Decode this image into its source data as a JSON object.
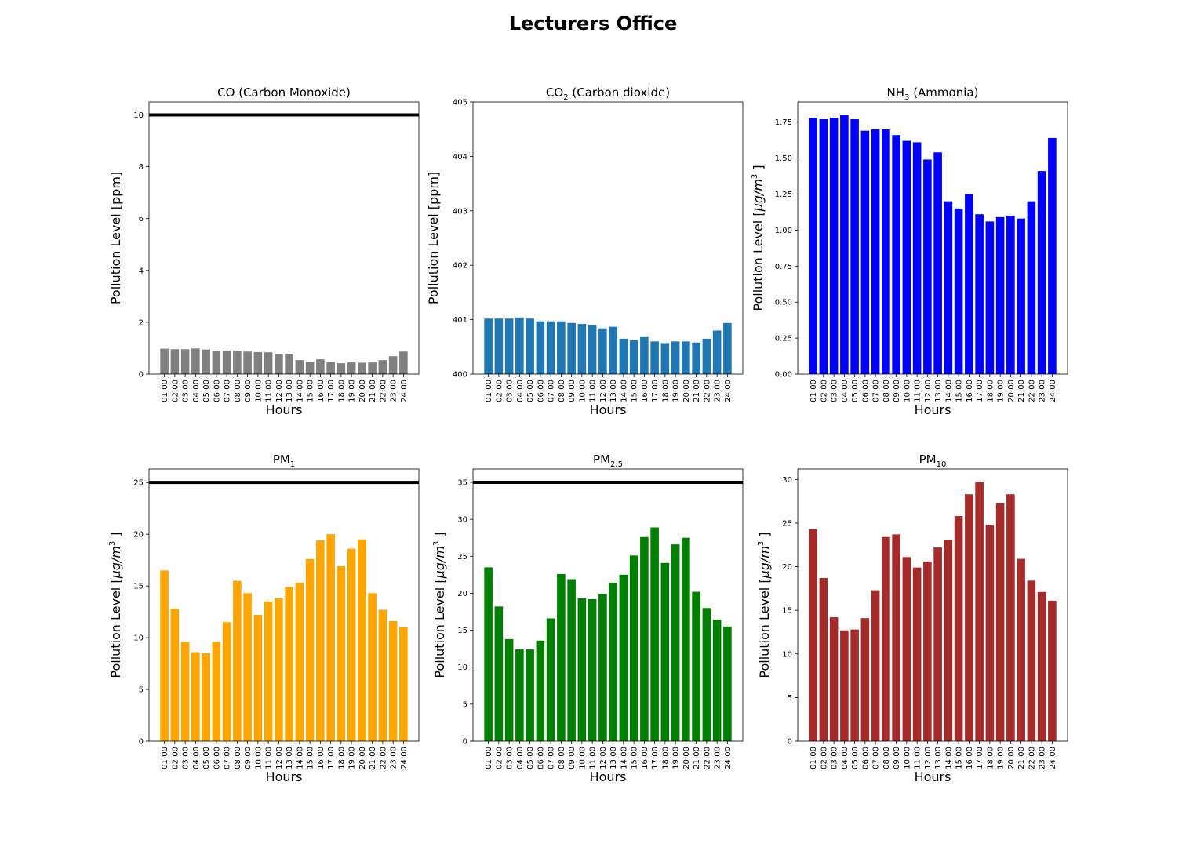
{
  "figure": {
    "title": "Lecturers Office"
  },
  "chart_data": [
    {
      "type": "bar",
      "title": "CO (Carbon Monoxide)",
      "title_main": "CO (Carbon Monoxide)",
      "title_sub": "",
      "title_rest": "",
      "xlabel": "Hours",
      "ylabel": "Pollution Level [ppm]",
      "ylabel_unit": "",
      "color": "#808080",
      "ylim": [
        0,
        10.5
      ],
      "yticks": [
        0,
        2,
        4,
        6,
        8,
        10
      ],
      "ytick_labels": [
        "0",
        "2",
        "4",
        "6",
        "8",
        "10"
      ],
      "threshold": 10,
      "categories": [
        "01:00",
        "02:00",
        "03:00",
        "04:00",
        "05:00",
        "06:00",
        "07:00",
        "08:00",
        "09:00",
        "10:00",
        "11:00",
        "12:00",
        "13:00",
        "14:00",
        "15:00",
        "16:00",
        "17:00",
        "18:00",
        "19:00",
        "20:00",
        "21:00",
        "22:00",
        "23:00",
        "24:00"
      ],
      "values": [
        0.98,
        0.96,
        0.96,
        0.99,
        0.95,
        0.91,
        0.91,
        0.91,
        0.87,
        0.85,
        0.84,
        0.76,
        0.78,
        0.54,
        0.48,
        0.57,
        0.48,
        0.42,
        0.45,
        0.44,
        0.45,
        0.54,
        0.69,
        0.87
      ]
    },
    {
      "type": "bar",
      "title": "CO2 (Carbon dioxide)",
      "title_main": "CO",
      "title_sub": "2",
      "title_rest": " (Carbon dioxide)",
      "xlabel": "Hours",
      "ylabel": "Pollution Level [ppm]",
      "ylabel_unit": "",
      "color": "#1f77b4",
      "ylim": [
        400,
        405
      ],
      "yticks": [
        400,
        401,
        402,
        403,
        404,
        405
      ],
      "ytick_labels": [
        "400",
        "401",
        "402",
        "403",
        "404",
        "405"
      ],
      "threshold": null,
      "categories": [
        "01:00",
        "02:00",
        "03:00",
        "04:00",
        "05:00",
        "06:00",
        "07:00",
        "08:00",
        "09:00",
        "10:00",
        "11:00",
        "12:00",
        "13:00",
        "14:00",
        "15:00",
        "16:00",
        "17:00",
        "18:00",
        "19:00",
        "20:00",
        "21:00",
        "22:00",
        "23:00",
        "24:00"
      ],
      "values": [
        401.02,
        401.02,
        401.02,
        401.04,
        401.02,
        400.97,
        400.97,
        400.97,
        400.94,
        400.92,
        400.9,
        400.84,
        400.87,
        400.65,
        400.62,
        400.68,
        400.6,
        400.57,
        400.6,
        400.6,
        400.58,
        400.65,
        400.8,
        400.94
      ]
    },
    {
      "type": "bar",
      "title": "NH3 (Ammonia)",
      "title_main": "NH",
      "title_sub": "3",
      "title_rest": " (Ammonia)",
      "xlabel": "Hours",
      "ylabel": "Pollution Level [",
      "ylabel_unit": "µg/m3 ]",
      "color": "#0000ff",
      "ylim": [
        0,
        1.89
      ],
      "yticks": [
        0,
        0.25,
        0.5,
        0.75,
        1.0,
        1.25,
        1.5,
        1.75
      ],
      "ytick_labels": [
        "0.00",
        "0.25",
        "0.50",
        "0.75",
        "1.00",
        "1.25",
        "1.50",
        "1.75"
      ],
      "threshold": null,
      "categories": [
        "01:00",
        "02:00",
        "03:00",
        "04:00",
        "05:00",
        "06:00",
        "07:00",
        "08:00",
        "09:00",
        "10:00",
        "11:00",
        "12:00",
        "13:00",
        "14:00",
        "15:00",
        "16:00",
        "17:00",
        "18:00",
        "19:00",
        "20:00",
        "21:00",
        "22:00",
        "23:00",
        "24:00"
      ],
      "values": [
        1.78,
        1.77,
        1.78,
        1.8,
        1.77,
        1.69,
        1.7,
        1.7,
        1.66,
        1.62,
        1.61,
        1.49,
        1.54,
        1.2,
        1.15,
        1.25,
        1.11,
        1.06,
        1.09,
        1.1,
        1.08,
        1.2,
        1.41,
        1.64
      ]
    },
    {
      "type": "bar",
      "title": "PM1",
      "title_main": "PM",
      "title_sub": "1",
      "title_rest": "",
      "xlabel": "Hours",
      "ylabel": "Pollution Level [",
      "ylabel_unit": "µg/m3 ]",
      "color": "#ffa500",
      "ylim": [
        0,
        26.3
      ],
      "yticks": [
        0,
        5,
        10,
        15,
        20,
        25
      ],
      "ytick_labels": [
        "0",
        "5",
        "10",
        "15",
        "20",
        "25"
      ],
      "threshold": 25,
      "categories": [
        "01:00",
        "02:00",
        "03:00",
        "04:00",
        "05:00",
        "06:00",
        "07:00",
        "08:00",
        "09:00",
        "10:00",
        "11:00",
        "12:00",
        "13:00",
        "14:00",
        "15:00",
        "16:00",
        "17:00",
        "18:00",
        "19:00",
        "20:00",
        "21:00",
        "22:00",
        "23:00",
        "24:00"
      ],
      "values": [
        16.5,
        12.8,
        9.6,
        8.6,
        8.5,
        9.6,
        11.5,
        15.5,
        14.3,
        12.2,
        13.5,
        13.8,
        14.9,
        15.3,
        17.6,
        19.4,
        20.0,
        16.9,
        18.6,
        19.5,
        14.3,
        12.7,
        11.6,
        11.0
      ]
    },
    {
      "type": "bar",
      "title": "PM2.5",
      "title_main": "PM",
      "title_sub": "2.5",
      "title_rest": "",
      "xlabel": "Hours",
      "ylabel": "Pollution Level [",
      "ylabel_unit": "µg/m3 ]",
      "color": "#008000",
      "ylim": [
        0,
        36.8
      ],
      "yticks": [
        0,
        5,
        10,
        15,
        20,
        25,
        30,
        35
      ],
      "ytick_labels": [
        "0",
        "5",
        "10",
        "15",
        "20",
        "25",
        "30",
        "35"
      ],
      "threshold": 35,
      "categories": [
        "01:00",
        "02:00",
        "03:00",
        "04:00",
        "05:00",
        "06:00",
        "07:00",
        "08:00",
        "09:00",
        "10:00",
        "11:00",
        "12:00",
        "13:00",
        "14:00",
        "15:00",
        "16:00",
        "17:00",
        "18:00",
        "19:00",
        "20:00",
        "21:00",
        "22:00",
        "23:00",
        "24:00"
      ],
      "values": [
        23.5,
        18.2,
        13.8,
        12.4,
        12.4,
        13.6,
        16.6,
        22.6,
        21.9,
        19.3,
        19.2,
        19.9,
        21.4,
        22.5,
        25.1,
        27.6,
        28.9,
        24.1,
        26.6,
        27.5,
        20.2,
        18.0,
        16.4,
        15.5
      ]
    },
    {
      "type": "bar",
      "title": "PM10",
      "title_main": "PM",
      "title_sub": "10",
      "title_rest": "",
      "xlabel": "Hours",
      "ylabel": "Pollution Level [",
      "ylabel_unit": "µg/m3 ]",
      "color": "#a52a2a",
      "ylim": [
        0,
        31.2
      ],
      "yticks": [
        0,
        5,
        10,
        15,
        20,
        25,
        30
      ],
      "ytick_labels": [
        "0",
        "5",
        "10",
        "15",
        "20",
        "25",
        "30"
      ],
      "threshold": null,
      "categories": [
        "01:00",
        "02:00",
        "03:00",
        "04:00",
        "05:00",
        "06:00",
        "07:00",
        "08:00",
        "09:00",
        "10:00",
        "11:00",
        "12:00",
        "13:00",
        "14:00",
        "15:00",
        "16:00",
        "17:00",
        "18:00",
        "19:00",
        "20:00",
        "21:00",
        "22:00",
        "23:00",
        "24:00"
      ],
      "values": [
        24.3,
        18.7,
        14.2,
        12.7,
        12.8,
        14.1,
        17.3,
        23.4,
        23.7,
        21.1,
        19.9,
        20.6,
        22.2,
        23.1,
        25.8,
        28.3,
        29.7,
        24.8,
        27.3,
        28.3,
        20.9,
        18.4,
        17.1,
        16.1
      ]
    }
  ]
}
